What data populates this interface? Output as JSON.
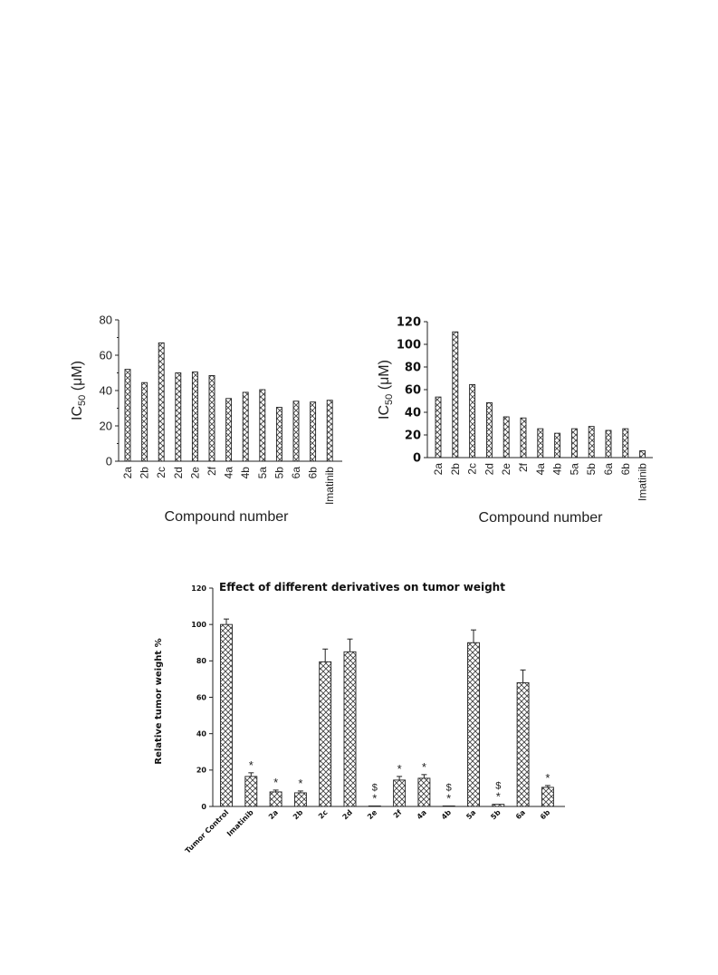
{
  "chart_data": [
    {
      "type": "bar",
      "categories": [
        "2a",
        "2b",
        "2c",
        "2d",
        "2e",
        "2f",
        "4a",
        "4b",
        "5a",
        "5b",
        "6a",
        "6b",
        "Imatinib"
      ],
      "values": [
        52,
        44.5,
        67,
        50,
        50.5,
        48.5,
        35.5,
        39,
        40.5,
        30.5,
        34,
        33.5,
        34.5
      ],
      "ylim": [
        0,
        80
      ],
      "yticks": [
        "0",
        "20",
        "40",
        "60",
        "80"
      ],
      "ylabel_main": "IC",
      "ylabel_sub": "50",
      "ylabel_unit": " (μM)",
      "xlabel": "Compound number",
      "pattern": "crosshatch"
    },
    {
      "type": "bar",
      "categories": [
        "2a",
        "2b",
        "2c",
        "2d",
        "2e",
        "2f",
        "4a",
        "4b",
        "5a",
        "5b",
        "6a",
        "6b",
        "Imatinib"
      ],
      "values": [
        53.5,
        111,
        64.5,
        48.5,
        36,
        35,
        25.5,
        21.5,
        25.5,
        27.5,
        24,
        25.5,
        6
      ],
      "ylim": [
        0,
        120
      ],
      "yticks": [
        "0",
        "20",
        "40",
        "60",
        "80",
        "100",
        "120"
      ],
      "ylabel_main": "IC",
      "ylabel_sub": "50",
      "ylabel_unit": " (μM)",
      "xlabel": "Compound number",
      "pattern": "crosshatch"
    },
    {
      "type": "bar",
      "title": "Effect of different derivatives on tumor weight",
      "categories": [
        "Tumor Control",
        "Imatinib",
        "2a",
        "2b",
        "2c",
        "2d",
        "2e",
        "2f",
        "4a",
        "4b",
        "5a",
        "5b",
        "6a",
        "6b"
      ],
      "values": [
        100,
        16.5,
        8,
        7.5,
        79.5,
        85,
        0.3,
        14.5,
        15.5,
        0.3,
        90,
        1.2,
        68,
        10.5
      ],
      "errors": [
        3,
        2,
        1,
        1,
        7,
        7,
        0,
        2,
        2,
        0,
        7,
        0,
        7,
        1
      ],
      "marks": [
        "",
        "*",
        "*",
        "*",
        "",
        "",
        "$\n*",
        "*",
        "*",
        "$\n*",
        "",
        "$\n*",
        "",
        "*"
      ],
      "ylim": [
        0,
        120
      ],
      "yticks": [
        "0",
        "20",
        "40",
        "60",
        "80",
        "100",
        "120"
      ],
      "ylabel": "Relative tumor weight  %",
      "pattern": "crosshatch"
    }
  ]
}
